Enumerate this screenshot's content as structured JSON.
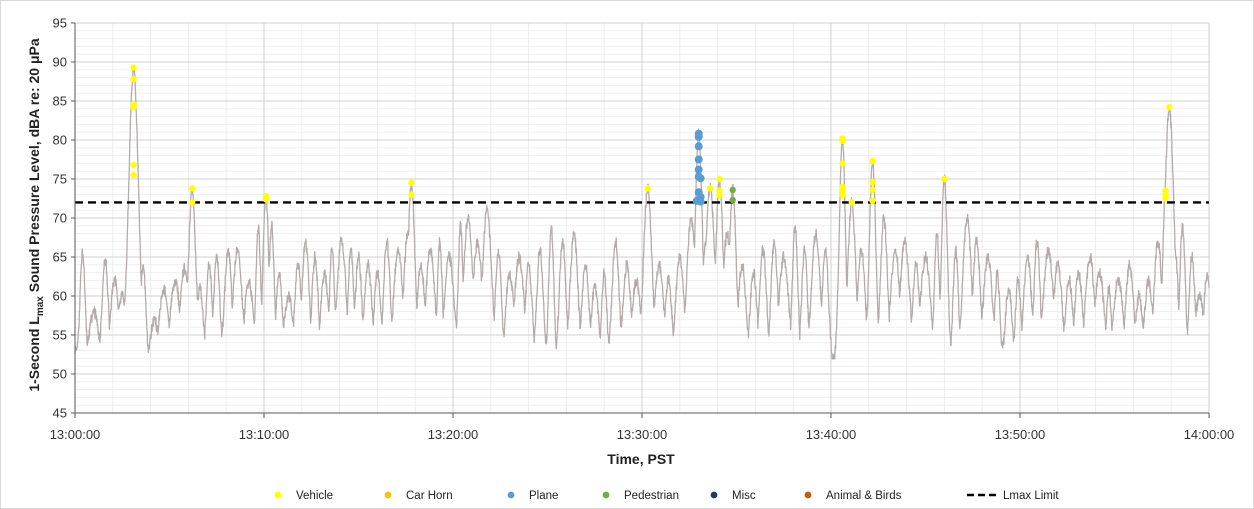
{
  "chart_data": {
    "type": "line",
    "xlabel": "Time, PST",
    "ylabel_prefix": "1-Second L",
    "ylabel_sub": "max",
    "ylabel_suffix": " Sound Pressure Level, dBA re: 20 μPa",
    "ylim": [
      45,
      95
    ],
    "xlim_minutes": [
      0,
      60
    ],
    "y_ticks": [
      45,
      50,
      55,
      60,
      65,
      70,
      75,
      80,
      85,
      90,
      95
    ],
    "x_ticks": [
      {
        "t": 0,
        "label": "13:00:00"
      },
      {
        "t": 10,
        "label": "13:10:00"
      },
      {
        "t": 20,
        "label": "13:20:00"
      },
      {
        "t": 30,
        "label": "13:30:00"
      },
      {
        "t": 40,
        "label": "13:40:00"
      },
      {
        "t": 50,
        "label": "13:50:00"
      },
      {
        "t": 60,
        "label": "14:00:00"
      }
    ],
    "grid": true,
    "lmax_limit": 72,
    "baseline_range": [
      48.5,
      58
    ],
    "peaks": [
      [
        0.4,
        65.5
      ],
      [
        1.0,
        58
      ],
      [
        1.6,
        64.5
      ],
      [
        2.1,
        62
      ],
      [
        2.5,
        60
      ],
      [
        3.0,
        67.5
      ],
      [
        3.1,
        89.3
      ],
      [
        3.6,
        64
      ],
      [
        4.2,
        57
      ],
      [
        4.7,
        61
      ],
      [
        5.3,
        62
      ],
      [
        5.8,
        63.5
      ],
      [
        6.2,
        73.8
      ],
      [
        6.6,
        61
      ],
      [
        7.1,
        64
      ],
      [
        7.5,
        65
      ],
      [
        8.1,
        66
      ],
      [
        8.6,
        66
      ],
      [
        9.2,
        62
      ],
      [
        9.7,
        68.5
      ],
      [
        10.1,
        72.8
      ],
      [
        10.4,
        69
      ],
      [
        10.8,
        63
      ],
      [
        11.3,
        60
      ],
      [
        11.8,
        64
      ],
      [
        12.2,
        67
      ],
      [
        12.7,
        65
      ],
      [
        13.2,
        63
      ],
      [
        13.6,
        66
      ],
      [
        14.1,
        67
      ],
      [
        14.6,
        66
      ],
      [
        15.0,
        65
      ],
      [
        15.5,
        64
      ],
      [
        16.0,
        63
      ],
      [
        16.5,
        67
      ],
      [
        17.1,
        66
      ],
      [
        17.6,
        68
      ],
      [
        17.8,
        74.5
      ],
      [
        18.3,
        64
      ],
      [
        18.8,
        66
      ],
      [
        19.3,
        67
      ],
      [
        19.8,
        65
      ],
      [
        20.4,
        69
      ],
      [
        20.8,
        70
      ],
      [
        21.3,
        67
      ],
      [
        21.8,
        71
      ],
      [
        22.4,
        66
      ],
      [
        23.0,
        63
      ],
      [
        23.5,
        65
      ],
      [
        24.0,
        64
      ],
      [
        24.6,
        66
      ],
      [
        25.2,
        69
      ],
      [
        25.8,
        67
      ],
      [
        26.4,
        68
      ],
      [
        27.0,
        64
      ],
      [
        27.5,
        61
      ],
      [
        28.0,
        63
      ],
      [
        28.6,
        67
      ],
      [
        29.2,
        64
      ],
      [
        29.7,
        62
      ],
      [
        30.3,
        73.8
      ],
      [
        30.9,
        64
      ],
      [
        31.4,
        62
      ],
      [
        32.0,
        65
      ],
      [
        32.6,
        70
      ],
      [
        33.0,
        80.8
      ],
      [
        33.4,
        67
      ],
      [
        33.6,
        73.8
      ],
      [
        34.1,
        75.0
      ],
      [
        34.5,
        68
      ],
      [
        34.8,
        73.6
      ],
      [
        35.3,
        64
      ],
      [
        35.9,
        63
      ],
      [
        36.4,
        66
      ],
      [
        37.0,
        67
      ],
      [
        37.5,
        65
      ],
      [
        38.1,
        69
      ],
      [
        38.6,
        66
      ],
      [
        39.2,
        68
      ],
      [
        39.7,
        66
      ],
      [
        40.6,
        80.2
      ],
      [
        41.1,
        72
      ],
      [
        41.6,
        66
      ],
      [
        42.2,
        77.3
      ],
      [
        42.8,
        70
      ],
      [
        43.4,
        66
      ],
      [
        43.9,
        67
      ],
      [
        44.5,
        64
      ],
      [
        45.0,
        65
      ],
      [
        45.6,
        68
      ],
      [
        46.0,
        75.0
      ],
      [
        46.6,
        66
      ],
      [
        47.2,
        70
      ],
      [
        47.7,
        67
      ],
      [
        48.3,
        65
      ],
      [
        48.8,
        63
      ],
      [
        49.4,
        61
      ],
      [
        49.9,
        62
      ],
      [
        50.4,
        65
      ],
      [
        50.9,
        67
      ],
      [
        51.5,
        66
      ],
      [
        52.0,
        64
      ],
      [
        52.6,
        62
      ],
      [
        53.1,
        63
      ],
      [
        53.7,
        65
      ],
      [
        54.2,
        63
      ],
      [
        54.7,
        61
      ],
      [
        55.2,
        62
      ],
      [
        55.8,
        64
      ],
      [
        56.3,
        60
      ],
      [
        56.8,
        62
      ],
      [
        57.3,
        67
      ],
      [
        57.7,
        73.5
      ],
      [
        58.2,
        66
      ],
      [
        58.6,
        69
      ],
      [
        59.1,
        65
      ],
      [
        59.5,
        60
      ],
      [
        59.9,
        63
      ],
      [
        57.9,
        84.2
      ]
    ],
    "series": [
      {
        "name": "Vehicle",
        "color": "#ffff00",
        "points": [
          [
            3.1,
            89.3
          ],
          [
            3.1,
            87.8
          ],
          [
            3.1,
            84.6
          ],
          [
            3.1,
            84.2
          ],
          [
            3.1,
            76.8
          ],
          [
            3.1,
            75.5
          ],
          [
            6.2,
            73.8
          ],
          [
            6.2,
            72.0
          ],
          [
            10.1,
            72.8
          ],
          [
            10.1,
            72.4
          ],
          [
            17.8,
            74.5
          ],
          [
            17.8,
            73.0
          ],
          [
            30.3,
            73.8
          ],
          [
            33.6,
            73.8
          ],
          [
            34.1,
            75.0
          ],
          [
            34.1,
            73.5
          ],
          [
            34.1,
            72.9
          ],
          [
            40.6,
            80.2
          ],
          [
            40.6,
            79.9
          ],
          [
            40.6,
            77.0
          ],
          [
            40.6,
            74.0
          ],
          [
            40.6,
            73.5
          ],
          [
            40.6,
            72.9
          ],
          [
            41.1,
            72.0
          ],
          [
            42.2,
            77.3
          ],
          [
            42.2,
            74.6
          ],
          [
            42.2,
            73.6
          ],
          [
            42.2,
            72.2
          ],
          [
            46.0,
            75.0
          ],
          [
            57.7,
            73.5
          ],
          [
            57.7,
            73.0
          ],
          [
            57.7,
            72.5
          ],
          [
            57.9,
            84.2
          ]
        ]
      },
      {
        "name": "Car Horn",
        "color": "#ffc000",
        "points": []
      },
      {
        "name": "Plane",
        "color": "#5b9bd5",
        "points": [
          [
            33.0,
            80.8
          ],
          [
            33.0,
            80.4
          ],
          [
            33.0,
            79.2
          ],
          [
            33.0,
            77.5
          ],
          [
            33.0,
            76.2
          ],
          [
            33.0,
            75.3
          ],
          [
            33.1,
            75.1
          ],
          [
            33.0,
            73.3
          ],
          [
            33.1,
            72.7
          ],
          [
            32.9,
            72.2
          ],
          [
            33.1,
            72.1
          ]
        ]
      },
      {
        "name": "Pedestrian",
        "color": "#70ad47",
        "points": [
          [
            34.8,
            73.6
          ],
          [
            34.8,
            72.3
          ]
        ]
      },
      {
        "name": "Misc",
        "color": "#203864",
        "points": []
      },
      {
        "name": "Animal & Birds",
        "color": "#c55a11",
        "points": []
      }
    ],
    "limit_series": {
      "name": "Lmax Limit",
      "color": "#000000"
    },
    "trace_color": "#b3acab"
  }
}
